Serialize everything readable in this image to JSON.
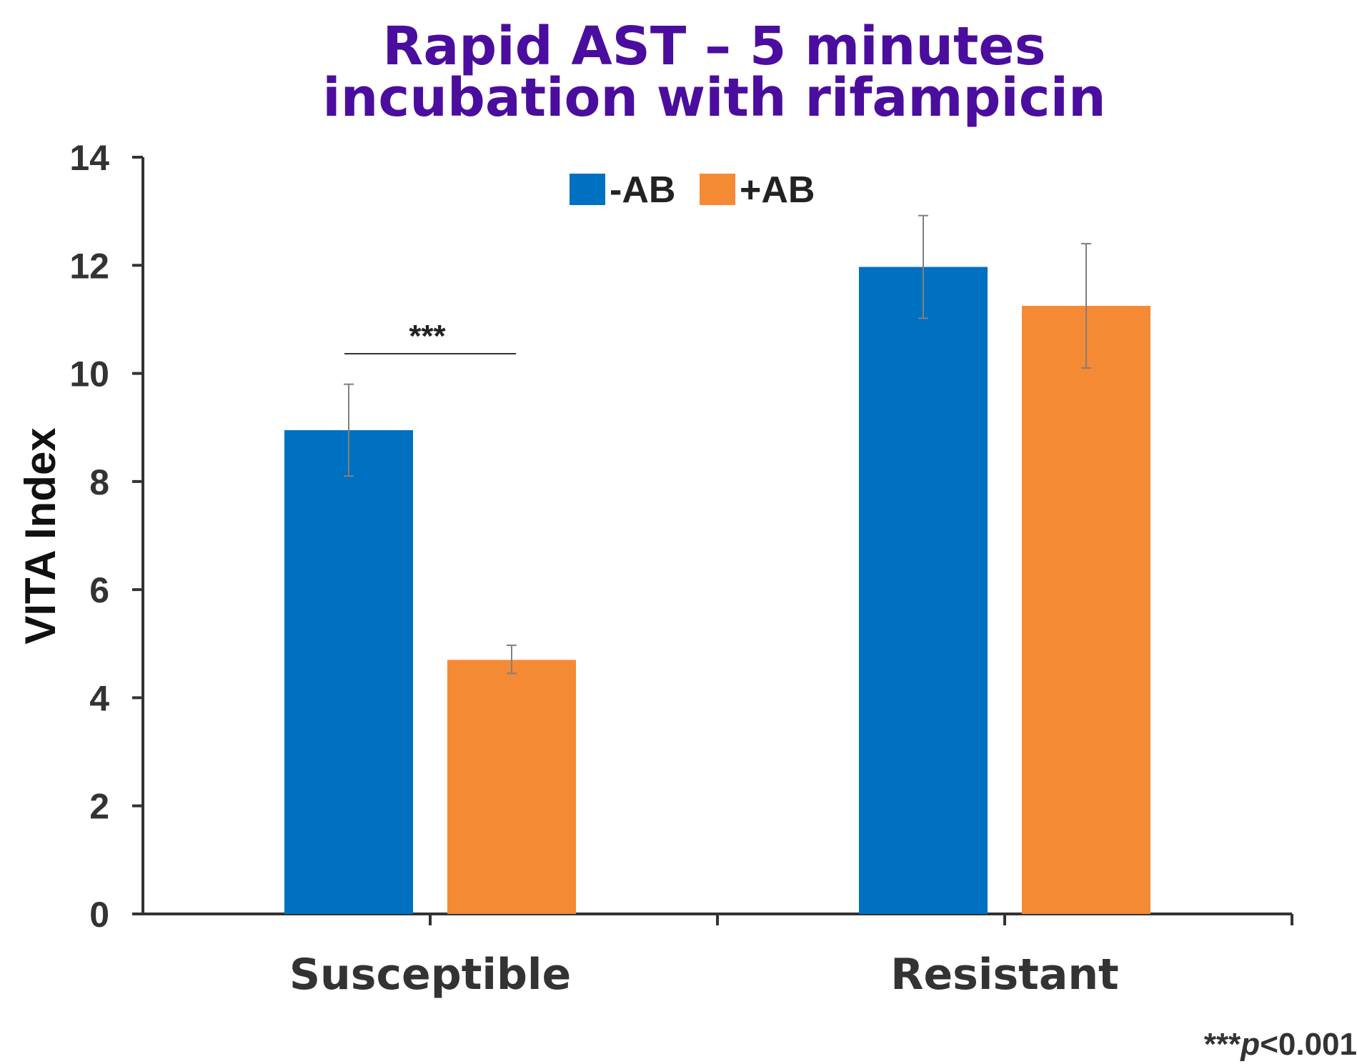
{
  "chart_data": {
    "type": "bar",
    "title_line1": "Rapid AST – 5 minutes",
    "title_line2": "incubation with rifampicin",
    "xlabel": "",
    "ylabel": "VITA Index",
    "categories": [
      "Susceptible",
      "Resistant"
    ],
    "series": [
      {
        "name": "-AB",
        "color": "#0070C0",
        "values": [
          8.95,
          11.97
        ],
        "error_low": [
          8.1,
          11.02
        ],
        "error_high": [
          9.8,
          12.92
        ]
      },
      {
        "name": "+AB",
        "color": "#F58A35",
        "values": [
          4.7,
          11.25
        ],
        "error_low": [
          4.45,
          10.1
        ],
        "error_high": [
          4.97,
          12.4
        ]
      }
    ],
    "ylim": [
      0,
      14
    ],
    "yticks": [
      0,
      2,
      4,
      6,
      8,
      10,
      12,
      14
    ],
    "legend_position": "top-center",
    "significance": {
      "category": "Susceptible",
      "label": "***"
    },
    "footnote_stars": "***",
    "footnote_p": "p",
    "footnote_value": "<0.001",
    "grid": false
  }
}
